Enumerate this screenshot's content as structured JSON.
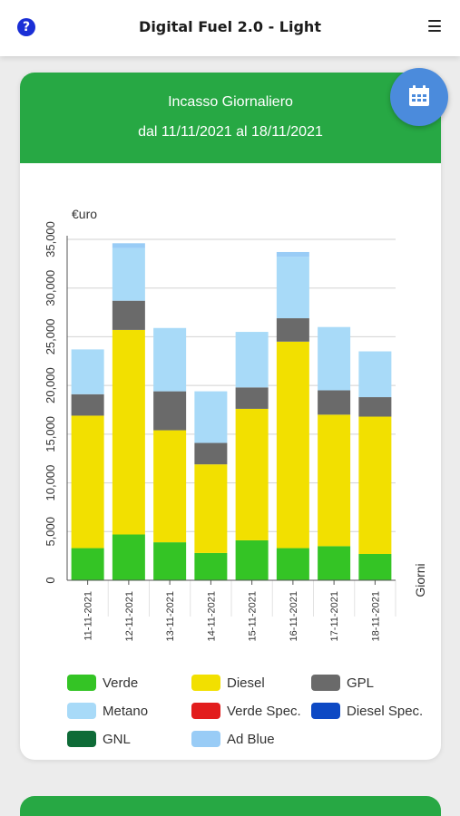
{
  "header": {
    "title": "Digital Fuel 2.0 - Light",
    "help_icon": "question-circle-icon",
    "menu_icon": "hamburger-menu-icon"
  },
  "card": {
    "title": "Incasso Giornaliero",
    "subtitle": "dal 11/11/2021 al 18/11/2021",
    "calendar_icon": "calendar-icon"
  },
  "chart_data": {
    "type": "bar",
    "stacked": true,
    "ylabel": "€uro",
    "xlabel": "Giorni",
    "ylim": [
      0,
      35000
    ],
    "yticks": [
      0,
      5000,
      10000,
      15000,
      20000,
      25000,
      30000,
      35000
    ],
    "ytick_labels": [
      "0",
      "5,000",
      "10,000",
      "15,000",
      "20,000",
      "25,000",
      "30,000",
      "35,000"
    ],
    "grid": true,
    "legend_position": "bottom",
    "categories": [
      "11-11-2021",
      "12-11-2021",
      "13-11-2021",
      "14-11-2021",
      "15-11-2021",
      "16-11-2021",
      "17-11-2021",
      "18-11-2021"
    ],
    "series": [
      {
        "name": "Verde",
        "color": "#34c425",
        "values": [
          3300,
          4700,
          3900,
          2800,
          4100,
          3300,
          3500,
          2700
        ]
      },
      {
        "name": "Diesel",
        "color": "#f2e000",
        "values": [
          13600,
          21000,
          11500,
          9100,
          13500,
          21200,
          13500,
          14100
        ]
      },
      {
        "name": "GPL",
        "color": "#6a6a6a",
        "values": [
          2200,
          3000,
          4000,
          2200,
          2200,
          2400,
          2500,
          2000
        ]
      },
      {
        "name": "Metano",
        "color": "#a8daf8",
        "values": [
          4600,
          5400,
          6500,
          5300,
          5700,
          6300,
          6500,
          4700
        ]
      },
      {
        "name": "Verde Spec.",
        "color": "#e21d1d",
        "values": [
          0,
          0,
          0,
          0,
          0,
          0,
          0,
          0
        ]
      },
      {
        "name": "Diesel Spec.",
        "color": "#0d49c4",
        "values": [
          0,
          0,
          0,
          0,
          0,
          0,
          0,
          0
        ]
      },
      {
        "name": "GNL",
        "color": "#0e6b37",
        "values": [
          0,
          0,
          0,
          0,
          0,
          0,
          0,
          0
        ]
      },
      {
        "name": "Ad Blue",
        "color": "#99ccf6",
        "values": [
          0,
          500,
          0,
          0,
          0,
          500,
          0,
          0
        ]
      }
    ]
  }
}
